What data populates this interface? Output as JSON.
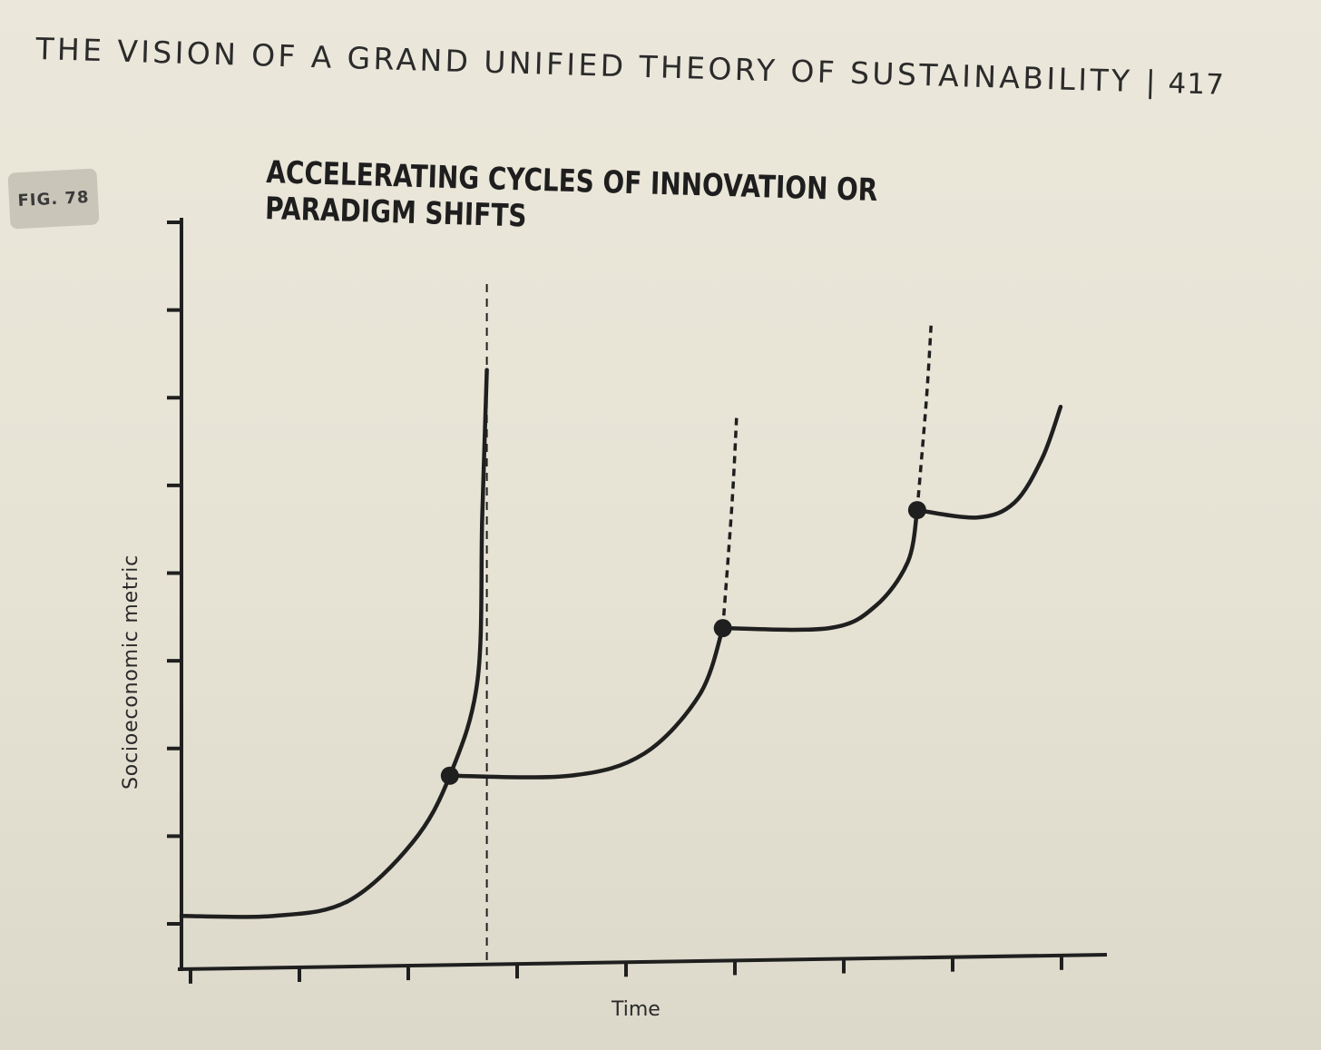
{
  "header": {
    "title": "THE VISION OF A GRAND UNIFIED THEORY OF SUSTAINABILITY",
    "separator": "|",
    "page_number": "417"
  },
  "figure": {
    "badge": "FIG. 78"
  },
  "chart_data": {
    "type": "line",
    "title": "ACCELERATING CYCLES OF INNOVATION OR PARADIGM SHIFTS",
    "xlabel": "Time",
    "ylabel": "Socioeconomic metric",
    "x_ticks": 9,
    "y_ticks": 9,
    "tick_labels": "none",
    "xlim": [
      0,
      10
    ],
    "ylim": [
      0,
      10
    ],
    "grid": false,
    "legend": "none",
    "line_color": "#1f1f1f",
    "series": [
      {
        "style": "solid",
        "points": [
          [
            0,
            0.6
          ],
          [
            1,
            0.6
          ],
          [
            1.8,
            0.8
          ],
          [
            2.5,
            1.6
          ],
          [
            2.9,
            2.5
          ],
          [
            3.2,
            3.8
          ],
          [
            3.25,
            6.0
          ],
          [
            3.3,
            8.0
          ]
        ]
      },
      {
        "style": "solid",
        "points": [
          [
            2.9,
            2.5
          ],
          [
            4.2,
            2.5
          ],
          [
            5.0,
            2.8
          ],
          [
            5.6,
            3.6
          ],
          [
            5.85,
            4.5
          ]
        ]
      },
      {
        "style": "dotted",
        "points": [
          [
            5.85,
            4.5
          ],
          [
            5.95,
            6.2
          ],
          [
            6.0,
            7.4
          ]
        ]
      },
      {
        "style": "solid",
        "points": [
          [
            5.85,
            4.5
          ],
          [
            7.0,
            4.5
          ],
          [
            7.5,
            4.8
          ],
          [
            7.85,
            5.4
          ],
          [
            7.95,
            6.1
          ]
        ]
      },
      {
        "style": "dotted",
        "points": [
          [
            7.95,
            6.1
          ],
          [
            8.05,
            7.6
          ],
          [
            8.1,
            8.6
          ]
        ]
      },
      {
        "style": "solid",
        "points": [
          [
            7.95,
            6.1
          ],
          [
            8.6,
            6.0
          ],
          [
            9.0,
            6.2
          ],
          [
            9.3,
            6.8
          ],
          [
            9.5,
            7.5
          ]
        ]
      }
    ],
    "markers": [
      [
        2.9,
        2.5
      ],
      [
        5.85,
        4.5
      ],
      [
        7.95,
        6.1
      ]
    ],
    "reference_lines": [
      {
        "style": "dashed",
        "x": 3.3,
        "y_range": [
          0,
          9.2
        ]
      }
    ]
  }
}
